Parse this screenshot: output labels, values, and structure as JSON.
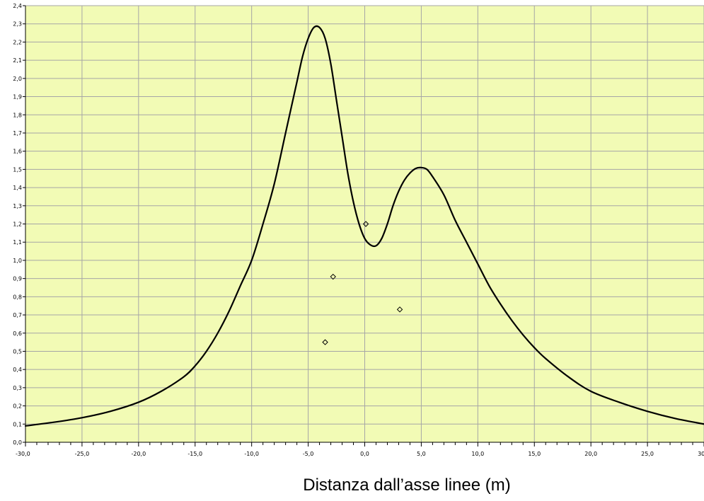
{
  "chart_data": {
    "type": "line",
    "title": "",
    "xlabel": "Distanza dall’asse linee (m)",
    "ylabel": "",
    "xlim": [
      -30,
      30
    ],
    "ylim": [
      0,
      2.4
    ],
    "x_major_step": 5,
    "x_minor_step": 1,
    "y_major_step": 0.1,
    "grid": true,
    "colors": {
      "plot_background": "#F2FBB5",
      "grid": "#A6A6A6",
      "line": "#000000",
      "axis": "#000000"
    },
    "xticks": [
      "-30,0",
      "-25,0",
      "-20,0",
      "-15,0",
      "-10,0",
      "-5,0",
      "0,0",
      "5,0",
      "10,0",
      "15,0",
      "20,0",
      "25,0",
      "30,0"
    ],
    "yticks": [
      "0,0",
      "0,1",
      "0,2",
      "0,3",
      "0,4",
      "0,5",
      "0,6",
      "0,7",
      "0,8",
      "0,9",
      "1,0",
      "1,1",
      "1,2",
      "1,3",
      "1,4",
      "1,5",
      "1,6",
      "1,7",
      "1,8",
      "1,9",
      "2,0",
      "2,1",
      "2,2",
      "2,3",
      "2,4"
    ],
    "series": [
      {
        "x": [
          -30,
          -27.5,
          -25,
          -22.5,
          -20,
          -18,
          -16,
          -15,
          -14,
          -13,
          -12,
          -11,
          -10,
          -9,
          -8,
          -7,
          -6,
          -5.5,
          -5,
          -4.5,
          -4,
          -3.5,
          -3,
          -2.5,
          -2,
          -1.5,
          -1,
          -0.5,
          0,
          0.5,
          1,
          1.5,
          2,
          2.5,
          3,
          3.5,
          4,
          4.5,
          5,
          5.5,
          6,
          7,
          8,
          9,
          10,
          11,
          12,
          13,
          14,
          15,
          16,
          18,
          20,
          22.5,
          25,
          27.5,
          30
        ],
        "y": [
          0.09,
          0.11,
          0.135,
          0.17,
          0.22,
          0.28,
          0.36,
          0.42,
          0.5,
          0.6,
          0.72,
          0.86,
          1.0,
          1.2,
          1.42,
          1.7,
          1.98,
          2.12,
          2.22,
          2.28,
          2.28,
          2.22,
          2.08,
          1.88,
          1.68,
          1.48,
          1.32,
          1.2,
          1.12,
          1.085,
          1.08,
          1.12,
          1.2,
          1.3,
          1.38,
          1.44,
          1.48,
          1.505,
          1.51,
          1.5,
          1.46,
          1.36,
          1.22,
          1.1,
          0.98,
          0.86,
          0.76,
          0.67,
          0.59,
          0.52,
          0.46,
          0.36,
          0.28,
          0.22,
          0.17,
          0.13,
          0.1
        ]
      },
      {
        "type": "scatter",
        "marker": "diamond",
        "x": [
          -3.5,
          -2.8,
          0.1,
          3.1
        ],
        "y": [
          0.55,
          0.91,
          1.2,
          0.73
        ]
      }
    ]
  }
}
